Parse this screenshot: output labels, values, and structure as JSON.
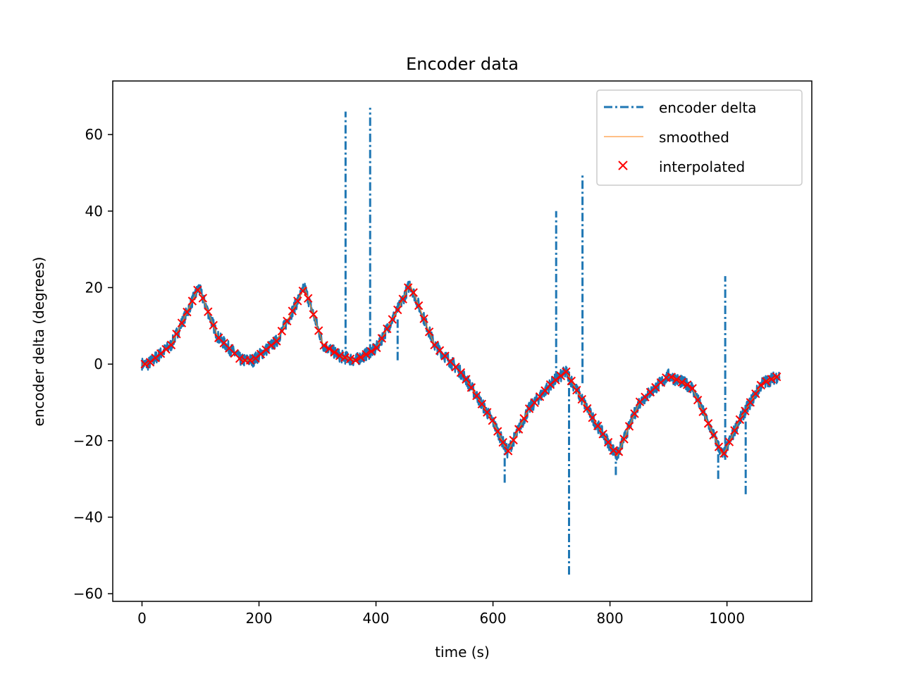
{
  "chart_data": {
    "type": "line",
    "title": "Encoder data",
    "xlabel": "time (s)",
    "ylabel": "encoder delta (degrees)",
    "xlim": [
      -50,
      1145
    ],
    "ylim": [
      -62,
      74
    ],
    "xticks": [
      0,
      200,
      400,
      600,
      800,
      1000
    ],
    "xtick_labels": [
      "0",
      "200",
      "400",
      "600",
      "800",
      "1000"
    ],
    "yticks": [
      60,
      40,
      20,
      0,
      -20,
      -40,
      -60
    ],
    "ytick_labels": [
      "60",
      "40",
      "20",
      "0",
      "−20",
      "−40",
      "−60"
    ],
    "grid": false,
    "legend_position": "top-right",
    "colors": {
      "raw": "#1f77b4",
      "smoothed": "#ff7f0e",
      "interpolated": "#ff0000"
    },
    "series": [
      {
        "name": "encoder delta",
        "style": "dash-dot",
        "base_x": [
          0,
          10,
          50,
          97,
          130,
          170,
          190,
          230,
          278,
          310,
          340,
          365,
          400,
          440,
          458,
          500,
          550,
          600,
          625,
          660,
          700,
          725,
          770,
          812,
          850,
          900,
          940,
          993,
          1020,
          1060,
          1090
        ],
        "base_y": [
          0,
          0,
          5,
          20,
          7,
          1,
          1,
          6,
          20,
          5,
          2,
          1,
          4,
          15,
          21,
          5,
          -3,
          -15,
          -23,
          -12,
          -5,
          -2,
          -14,
          -24,
          -10,
          -3,
          -6,
          -24,
          -15,
          -5,
          -3
        ],
        "spikes": [
          {
            "x": 348,
            "ymin": 1,
            "ymax": 66
          },
          {
            "x": 390,
            "ymin": 3,
            "ymax": 67
          },
          {
            "x": 437,
            "ymin": 1,
            "ymax": 12
          },
          {
            "x": 620,
            "ymin": -31,
            "ymax": -22
          },
          {
            "x": 708,
            "ymin": -4,
            "ymax": 40
          },
          {
            "x": 730,
            "ymin": -55,
            "ymax": -2
          },
          {
            "x": 753,
            "ymin": -5,
            "ymax": 50
          },
          {
            "x": 810,
            "ymin": -29,
            "ymax": -22
          },
          {
            "x": 985,
            "ymin": -30,
            "ymax": -22
          },
          {
            "x": 997,
            "ymin": -25,
            "ymax": 23
          },
          {
            "x": 1032,
            "ymin": -34,
            "ymax": -15
          }
        ]
      },
      {
        "name": "smoothed",
        "style": "solid",
        "x": [
          0,
          10,
          50,
          97,
          130,
          170,
          190,
          230,
          278,
          310,
          340,
          365,
          400,
          440,
          458,
          500,
          550,
          600,
          625,
          660,
          700,
          725,
          770,
          812,
          850,
          900,
          940,
          993,
          1020,
          1060,
          1090
        ],
        "y": [
          0,
          0,
          5,
          20,
          7,
          1,
          1,
          6,
          20,
          5,
          2,
          1,
          4,
          15,
          21,
          5,
          -3,
          -15,
          -23,
          -12,
          -5,
          -2,
          -14,
          -24,
          -10,
          -3,
          -6,
          -24,
          -15,
          -5,
          -3
        ]
      },
      {
        "name": "interpolated",
        "style": "marker-x",
        "x_start": 5,
        "x_end": 1085,
        "x_step": 9
      }
    ]
  }
}
